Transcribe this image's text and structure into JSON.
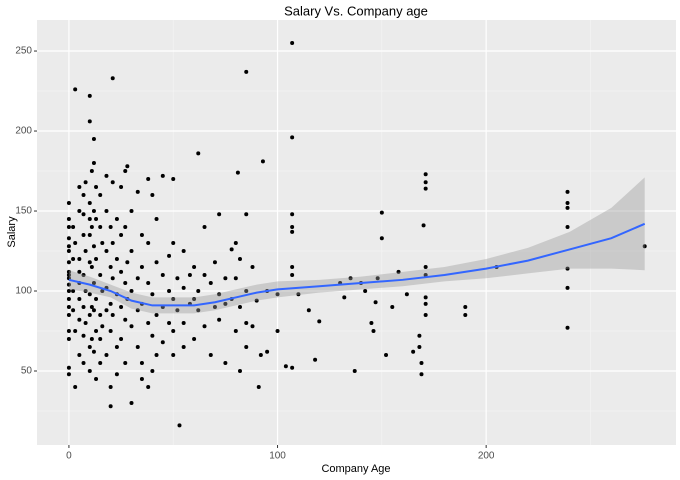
{
  "chart_data": {
    "type": "scatter",
    "title": "Salary Vs. Company age",
    "x_label": "Company Age",
    "y_label": "Salary",
    "xlim": [
      -15.3,
      291
    ],
    "ylim": [
      3.75,
      269.4
    ],
    "xticks": [
      0,
      100,
      200
    ],
    "yticks": [
      50,
      100,
      150,
      200,
      250
    ],
    "x_minor_grid": [
      50,
      150,
      250
    ],
    "y_minor_grid": [
      25,
      75,
      125,
      175,
      225
    ],
    "grid": true,
    "point_color": "#000000",
    "x": [
      0,
      0,
      0,
      0,
      0,
      0,
      0,
      0,
      0,
      0,
      0,
      0,
      0,
      0,
      0,
      0,
      0,
      0,
      0,
      2,
      2,
      2,
      2,
      3,
      3,
      3,
      3,
      5,
      5,
      5,
      5,
      5,
      5,
      5,
      5,
      7,
      7,
      7,
      7,
      7,
      7,
      7,
      8,
      8,
      8,
      8,
      10,
      10,
      10,
      10,
      10,
      10,
      10,
      10,
      10,
      10,
      11,
      11,
      11,
      11,
      11,
      12,
      12,
      12,
      12,
      12,
      12,
      12,
      13,
      13,
      13,
      13,
      13,
      13,
      15,
      15,
      15,
      15,
      15,
      15,
      16,
      16,
      16,
      18,
      18,
      18,
      18,
      18,
      18,
      20,
      20,
      20,
      20,
      20,
      20,
      21,
      21,
      21,
      21,
      21,
      23,
      23,
      23,
      23,
      23,
      25,
      25,
      25,
      25,
      25,
      27,
      27,
      27,
      27,
      27,
      28,
      28,
      28,
      30,
      30,
      30,
      30,
      30,
      33,
      33,
      33,
      33,
      35,
      35,
      35,
      35,
      35,
      38,
      38,
      38,
      38,
      38,
      40,
      40,
      40,
      40,
      42,
      42,
      42,
      42,
      45,
      45,
      45,
      45,
      48,
      48,
      48,
      50,
      50,
      50,
      50,
      50,
      52,
      52,
      53,
      55,
      55,
      55,
      55,
      58,
      58,
      60,
      60,
      60,
      62,
      62,
      62,
      65,
      65,
      65,
      68,
      68,
      70,
      70,
      72,
      72,
      72,
      75,
      75,
      75,
      78,
      78,
      80,
      80,
      80,
      81,
      82,
      82,
      82,
      85,
      85,
      85,
      85,
      85,
      88,
      88,
      90,
      91,
      92,
      93,
      95,
      95,
      100,
      100,
      104,
      107,
      107,
      107,
      107,
      107,
      107,
      107,
      107,
      110,
      115,
      118,
      120,
      130,
      132,
      135,
      137,
      140,
      142,
      145,
      146,
      147,
      148,
      150,
      150,
      152,
      155,
      158,
      162,
      165,
      168,
      168,
      169,
      169,
      170,
      171,
      171,
      171,
      171,
      171,
      171,
      171,
      171,
      190,
      190,
      205,
      239,
      239,
      239,
      239,
      239,
      239,
      239,
      276
    ],
    "y": [
      155,
      145,
      140,
      133,
      125,
      118,
      112,
      108,
      104,
      100,
      95,
      90,
      85,
      75,
      70,
      52,
      48,
      110,
      128,
      140,
      120,
      100,
      88,
      226,
      40,
      75,
      130,
      165,
      150,
      120,
      105,
      95,
      82,
      60,
      112,
      160,
      148,
      135,
      110,
      90,
      72,
      55,
      168,
      125,
      100,
      80,
      222,
      206,
      155,
      145,
      135,
      118,
      98,
      85,
      65,
      50,
      175,
      140,
      115,
      90,
      70,
      195,
      180,
      150,
      128,
      105,
      88,
      62,
      165,
      145,
      120,
      95,
      75,
      45,
      160,
      140,
      110,
      85,
      70,
      55,
      130,
      100,
      78,
      172,
      150,
      125,
      102,
      88,
      60,
      140,
      115,
      92,
      75,
      28,
      40,
      233,
      168,
      130,
      108,
      85,
      145,
      120,
      98,
      65,
      48,
      165,
      135,
      112,
      90,
      70,
      175,
      140,
      105,
      82,
      55,
      178,
      118,
      95,
      150,
      125,
      100,
      78,
      30,
      162,
      108,
      88,
      65,
      135,
      115,
      92,
      55,
      45,
      170,
      130,
      105,
      80,
      40,
      160,
      98,
      72,
      50,
      145,
      118,
      85,
      60,
      172,
      110,
      90,
      68,
      122,
      100,
      80,
      170,
      130,
      95,
      75,
      60,
      108,
      88,
      16,
      125,
      102,
      80,
      65,
      110,
      92,
      115,
      95,
      70,
      186,
      100,
      88,
      140,
      110,
      78,
      105,
      60,
      118,
      90,
      148,
      98,
      82,
      108,
      92,
      55,
      126,
      95,
      130,
      108,
      75,
      174,
      120,
      90,
      50,
      237,
      148,
      100,
      80,
      65,
      115,
      78,
      94,
      40,
      60,
      181,
      62,
      100,
      98,
      75,
      53,
      255,
      196,
      148,
      140,
      137,
      115,
      110,
      52,
      98,
      88,
      57,
      81,
      105,
      96,
      108,
      50,
      105,
      100,
      80,
      75,
      93,
      108,
      149,
      133,
      60,
      90,
      112,
      98,
      62,
      72,
      65,
      55,
      48,
      141,
      173,
      168,
      164,
      115,
      110,
      96,
      92,
      85,
      90,
      85,
      115,
      162,
      155,
      152,
      140,
      114,
      102,
      77,
      128
    ],
    "smooth": {
      "color": "#3366FF",
      "band_color": "#999999",
      "x": [
        0,
        10,
        20,
        30,
        40,
        50,
        60,
        70,
        80,
        90,
        100,
        120,
        140,
        160,
        180,
        200,
        220,
        240,
        260,
        276
      ],
      "values": [
        107,
        104,
        100,
        94,
        91,
        91,
        91,
        93,
        96,
        99,
        101,
        103,
        105,
        107,
        110,
        114,
        119,
        126,
        133,
        142
      ],
      "lower": [
        101,
        99,
        96,
        89,
        86,
        86,
        86,
        88,
        91,
        94,
        96,
        99,
        101,
        103,
        106,
        108,
        111,
        114,
        114,
        113
      ],
      "upper": [
        113,
        109,
        104,
        99,
        96,
        96,
        96,
        98,
        101,
        104,
        106,
        107,
        109,
        112,
        115,
        120,
        127,
        137,
        152,
        171
      ]
    }
  }
}
